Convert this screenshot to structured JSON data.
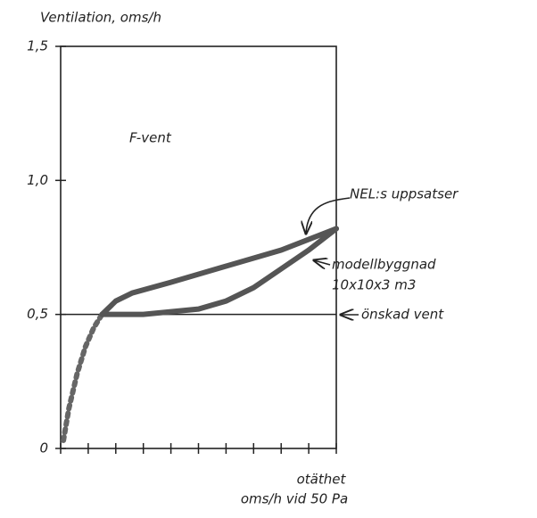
{
  "chart_data": {
    "type": "line",
    "title": "Ventilation, oms/h",
    "xlabel_lines": [
      "otäthet",
      "oms/h vid 50 Pa"
    ],
    "xlim": [
      0,
      10
    ],
    "xticks": [
      0,
      1,
      2,
      3,
      4,
      5,
      6,
      7,
      8,
      9,
      10
    ],
    "ylim": [
      0,
      1.5
    ],
    "yticks": [
      0,
      {
        "value": 0.5,
        "label": "0,5"
      },
      {
        "value": 1.0,
        "label": "1,0"
      },
      {
        "value": 1.5,
        "label": "1,5"
      }
    ],
    "reference_line": 0.5,
    "series": [
      {
        "color": "#666",
        "dashed": true,
        "x": [
          0.1,
          0.3,
          0.6,
          0.9,
          1.2,
          1.5
        ],
        "values": [
          0.03,
          0.15,
          0.28,
          0.38,
          0.45,
          0.5
        ]
      },
      {
        "color": "#555",
        "dashed": false,
        "x": [
          1.5,
          2,
          2.6,
          4,
          6,
          8,
          10
        ],
        "values": [
          0.5,
          0.55,
          0.58,
          0.62,
          0.68,
          0.74,
          0.82
        ]
      },
      {
        "color": "#555",
        "dashed": false,
        "x": [
          1.5,
          3,
          5,
          6,
          7,
          8,
          9,
          10
        ],
        "values": [
          0.5,
          0.5,
          0.52,
          0.55,
          0.6,
          0.67,
          0.74,
          0.82
        ]
      }
    ],
    "annotations": [
      "F-vent",
      "NEL:s uppsatser",
      "modellbyggnad",
      "10x10x3 m3",
      "önskad vent"
    ]
  }
}
